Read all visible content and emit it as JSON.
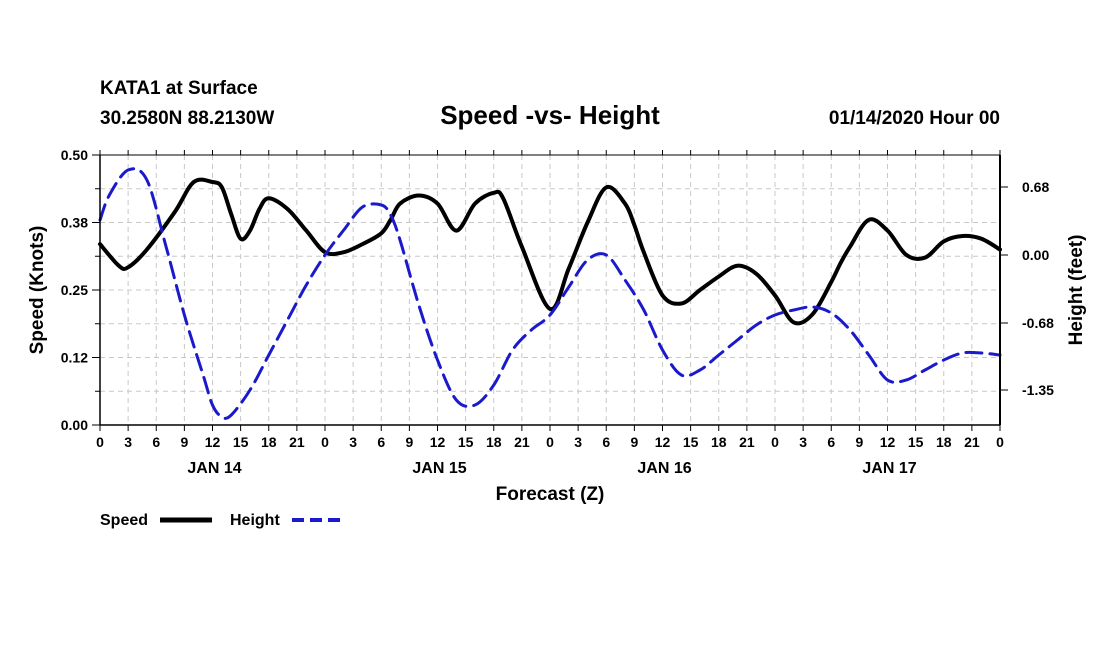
{
  "header": {
    "station": "KATA1 at Surface",
    "coords": "30.2580N 88.2130W",
    "title": "Speed -vs- Height",
    "datetime": "01/14/2020 Hour 00"
  },
  "legend": {
    "speed_label": "Speed",
    "height_label": "Height"
  },
  "colors": {
    "speed": "#000000",
    "height": "#1a1acc",
    "grid": "#c8c8c8"
  },
  "chart_data": {
    "type": "line",
    "title": "Speed -vs- Height",
    "xlabel": "Forecast (Z)",
    "ylabel": "Speed (Knots)",
    "y2label": "Height (feet)",
    "x_unit": "hours from 01/14/2020 00Z",
    "xlim": [
      0,
      96
    ],
    "ylim": [
      0,
      0.5
    ],
    "y2lim": [
      -1.7,
      1.0
    ],
    "grid": true,
    "x_tick_values": [
      0,
      3,
      6,
      9,
      12,
      15,
      18,
      21,
      24,
      27,
      30,
      33,
      36,
      39,
      42,
      45,
      48,
      51,
      54,
      57,
      60,
      63,
      66,
      69,
      72,
      75,
      78,
      81,
      84,
      87,
      90,
      93,
      96
    ],
    "x_tick_labels": [
      "0",
      "3",
      "6",
      "9",
      "12",
      "15",
      "18",
      "21",
      "0",
      "3",
      "6",
      "9",
      "12",
      "15",
      "18",
      "21",
      "0",
      "3",
      "6",
      "9",
      "12",
      "15",
      "18",
      "21",
      "0",
      "3",
      "6",
      "9",
      "12",
      "15",
      "18",
      "21",
      "0"
    ],
    "day_labels": [
      {
        "hour": 12,
        "label": "JAN 14"
      },
      {
        "hour": 36,
        "label": "JAN 15"
      },
      {
        "hour": 60,
        "label": "JAN 16"
      },
      {
        "hour": 84,
        "label": "JAN 17"
      }
    ],
    "y_ticks": [
      {
        "value": 0.0,
        "label": "0.00"
      },
      {
        "value": 0.125,
        "label": "0.12"
      },
      {
        "value": 0.25,
        "label": "0.25"
      },
      {
        "value": 0.375,
        "label": "0.38"
      },
      {
        "value": 0.5,
        "label": "0.50"
      }
    ],
    "y2_ticks": [
      {
        "value": 0.68,
        "label": "0.68"
      },
      {
        "value": 0.0,
        "label": "0.00"
      },
      {
        "value": -0.68,
        "label": "-0.68"
      },
      {
        "value": -1.35,
        "label": "-1.35"
      }
    ],
    "series": [
      {
        "name": "Speed",
        "axis": "left",
        "style": "solid",
        "x": [
          0,
          2,
          3,
          5,
          8,
          10,
          12,
          13,
          14,
          15,
          16,
          17,
          18,
          20,
          22,
          24,
          26,
          28,
          30,
          31,
          32,
          34,
          36,
          38,
          40,
          42,
          43,
          45,
          48,
          50,
          52,
          54,
          56,
          57,
          58,
          60,
          62,
          64,
          66,
          68,
          70,
          72,
          74,
          76,
          78,
          79,
          80,
          82,
          84,
          86,
          88,
          90,
          92,
          94,
          96
        ],
        "values": [
          0.335,
          0.295,
          0.292,
          0.325,
          0.395,
          0.45,
          0.45,
          0.44,
          0.39,
          0.345,
          0.36,
          0.4,
          0.42,
          0.4,
          0.36,
          0.32,
          0.32,
          0.335,
          0.355,
          0.38,
          0.41,
          0.425,
          0.41,
          0.36,
          0.41,
          0.43,
          0.42,
          0.33,
          0.215,
          0.29,
          0.375,
          0.44,
          0.41,
          0.37,
          0.32,
          0.24,
          0.225,
          0.25,
          0.275,
          0.295,
          0.28,
          0.24,
          0.19,
          0.205,
          0.265,
          0.3,
          0.33,
          0.38,
          0.36,
          0.315,
          0.31,
          0.34,
          0.35,
          0.345,
          0.325
        ]
      },
      {
        "name": "Height",
        "axis": "right",
        "style": "dashed",
        "x": [
          0,
          1,
          3,
          5,
          7,
          9,
          11,
          12,
          13,
          14,
          16,
          18,
          20,
          22,
          24,
          26,
          28,
          30,
          31,
          32,
          34,
          36,
          38,
          40,
          42,
          44,
          46,
          48,
          50,
          52,
          54,
          56,
          58,
          60,
          62,
          64,
          66,
          68,
          70,
          72,
          74,
          76,
          78,
          80,
          82,
          84,
          86,
          88,
          90,
          92,
          94,
          96
        ],
        "values": [
          0.35,
          0.6,
          0.85,
          0.75,
          0.1,
          -0.6,
          -1.2,
          -1.5,
          -1.62,
          -1.6,
          -1.35,
          -1.0,
          -0.65,
          -0.3,
          0.0,
          0.25,
          0.48,
          0.5,
          0.4,
          0.15,
          -0.5,
          -1.05,
          -1.45,
          -1.5,
          -1.3,
          -0.95,
          -0.75,
          -0.6,
          -0.32,
          -0.05,
          0.0,
          -0.25,
          -0.55,
          -0.95,
          -1.2,
          -1.15,
          -1.0,
          -0.85,
          -0.7,
          -0.6,
          -0.55,
          -0.52,
          -0.58,
          -0.75,
          -1.0,
          -1.25,
          -1.25,
          -1.15,
          -1.05,
          -0.98,
          -0.98,
          -1.0
        ]
      }
    ]
  }
}
